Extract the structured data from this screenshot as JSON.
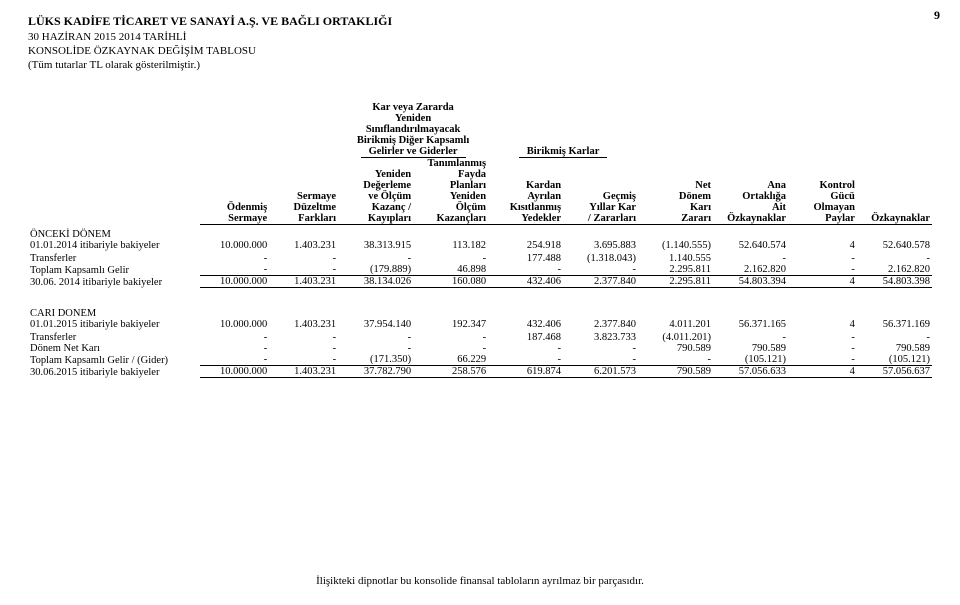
{
  "page_number": "9",
  "header": {
    "company": "LÜKS KADİFE TİCARET VE SANAYİ A.Ş. VE BAĞLI ORTAKLIĞI",
    "line1": "30 HAZİRAN 2015 2014 TARİHLİ",
    "line2": "KONSOLİDE ÖZKAYNAK DEĞİŞİM TABLOSU",
    "line3": "(Tüm tutarlar TL olarak gösterilmiştir.)"
  },
  "group_headers": {
    "g1_l1": "Kar veya Zararda",
    "g1_l2": "Yeniden",
    "g1_l3": "Sınıflandırılmayacak",
    "g1_l4": "Birikmiş Diğer Kapsamlı",
    "g1_l5": "Gelirler ve Giderler",
    "g2": "Birikmiş Karlar"
  },
  "col_headers": {
    "c1_l1": "Ödenmiş",
    "c1_l2": "Sermaye",
    "c2_l1": "Sermaye",
    "c2_l2": "Düzeltme",
    "c2_l3": "Farkları",
    "c3_l1": "Yeniden",
    "c3_l2": "Değerleme",
    "c3_l3": "ve Ölçüm",
    "c3_l4": "Kazanç /",
    "c3_l5": "Kayıpları",
    "c4_l1": "Tanımlanmış",
    "c4_l2": "Fayda",
    "c4_l3": "Planları",
    "c4_l4": "Yeniden",
    "c4_l5": "Ölçüm",
    "c4_l6": "Kazançları",
    "c5_l1": "Kardan",
    "c5_l2": "Ayrılan",
    "c5_l3": "Kısıtlanmış",
    "c5_l4": "Yedekler",
    "c6_l1": "Geçmiş",
    "c6_l2": "Yıllar Kar",
    "c6_l3": "/ Zararları",
    "c7_l1": "Net",
    "c7_l2": "Dönem",
    "c7_l3": "Karı",
    "c7_l4": "Zararı",
    "c8_l1": "Ana",
    "c8_l2": "Ortaklığa",
    "c8_l3": "Ait",
    "c8_l4": "Özkaynaklar",
    "c9_l1": "Kontrol",
    "c9_l2": "Gücü",
    "c9_l3": "Olmayan",
    "c9_l4": "Paylar",
    "c10": "Özkaynaklar"
  },
  "sectionA": {
    "title": "ÖNCEKİ DÖNEM",
    "rows": [
      {
        "label": "01.01.2014 itibariyle bakiyeler",
        "bold": true,
        "v": [
          "10.000.000",
          "1.403.231",
          "38.313.915",
          "113.182",
          "254.918",
          "3.695.883",
          "(1.140.555)",
          "52.640.574",
          "4",
          "52.640.578"
        ]
      },
      {
        "label": "Transferler",
        "v": [
          "-",
          "-",
          "-",
          "-",
          "177.488",
          "(1.318.043)",
          "1.140.555",
          "-",
          "-",
          "-"
        ]
      },
      {
        "label": "Toplam Kapsamlı Gelir",
        "v": [
          "-",
          "-",
          "(179.889)",
          "46.898",
          "-",
          "-",
          "2.295.811",
          "2.162.820",
          "-",
          "2.162.820"
        ]
      },
      {
        "label": "30.06. 2014 itibariyle bakiyeler",
        "bold": true,
        "v": [
          "10.000.000",
          "1.403.231",
          "38.134.026",
          "160.080",
          "432.406",
          "2.377.840",
          "2.295.811",
          "54.803.394",
          "4",
          "54.803.398"
        ]
      }
    ]
  },
  "sectionB": {
    "title": "CARI DONEM",
    "rows": [
      {
        "label": "01.01.2015 itibariyle bakiyeler",
        "bold": true,
        "v": [
          "10.000.000",
          "1.403.231",
          "37.954.140",
          "192.347",
          "432.406",
          "2.377.840",
          "4.011.201",
          "56.371.165",
          "4",
          "56.371.169"
        ]
      },
      {
        "label": "Transferler",
        "v": [
          "-",
          "-",
          "-",
          "-",
          "187.468",
          "3.823.733",
          "(4.011.201)",
          "-",
          "-",
          "-"
        ]
      },
      {
        "label": "Dönem Net Karı",
        "v": [
          "-",
          "-",
          "-",
          "-",
          "-",
          "-",
          "790.589",
          "790.589",
          "-",
          "790.589"
        ]
      },
      {
        "label": "Toplam Kapsamlı Gelir / (Gider)",
        "v": [
          "-",
          "-",
          "(171.350)",
          "66.229",
          "-",
          "-",
          "-",
          "(105.121)",
          "-",
          "(105.121)"
        ]
      },
      {
        "label": "30.06.2015 itibariyle bakiyeler",
        "bold": true,
        "v": [
          "10.000.000",
          "1.403.231",
          "37.782.790",
          "258.576",
          "619.874",
          "6.201.573",
          "790.589",
          "57.056.633",
          "4",
          "57.056.637"
        ]
      }
    ]
  },
  "footnote": "İlişikteki dipnotlar bu konsolide finansal tabloların ayrılmaz bir parçasıdır."
}
